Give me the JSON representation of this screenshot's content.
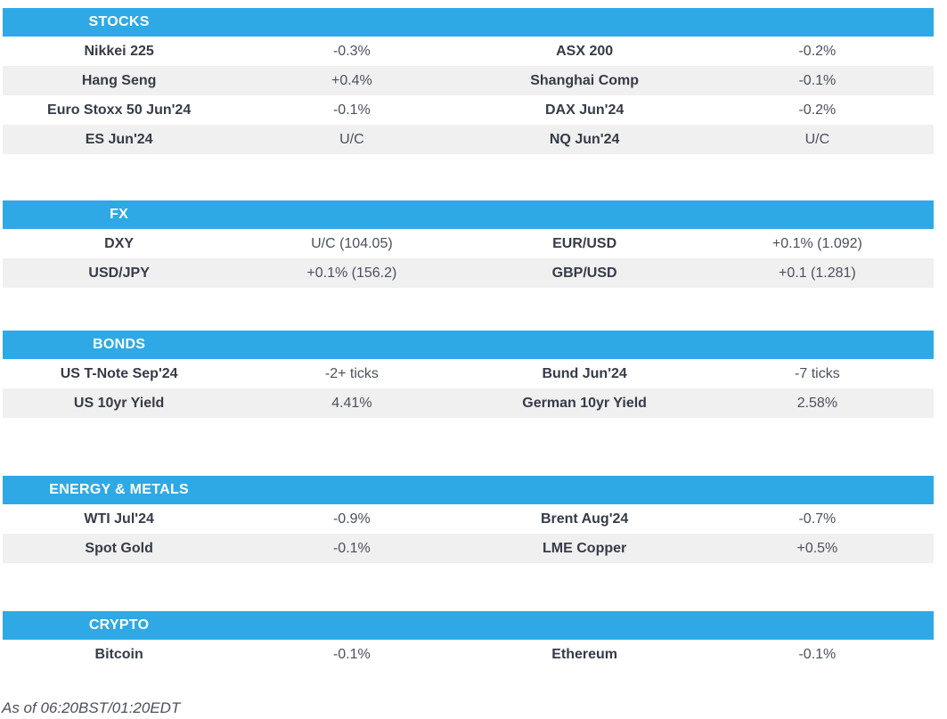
{
  "colors": {
    "accent": "#2EA9E5",
    "row_alt": "#F0F0F1",
    "name_text": "#363B47",
    "value_text": "#4B505C"
  },
  "sections": [
    {
      "id": "stocks",
      "title": "STOCKS",
      "rows": [
        [
          "Nikkei 225",
          "-0.3%",
          "ASX 200",
          "-0.2%"
        ],
        [
          "Hang Seng",
          "+0.4%",
          "Shanghai Comp",
          "-0.1%"
        ],
        [
          "Euro Stoxx 50 Jun'24",
          "-0.1%",
          "DAX Jun'24",
          "-0.2%"
        ],
        [
          "ES Jun'24",
          "U/C",
          "NQ Jun'24",
          "U/C"
        ]
      ]
    },
    {
      "id": "fx",
      "title": "FX",
      "rows": [
        [
          "DXY",
          "U/C (104.05)",
          "EUR/USD",
          "+0.1% (1.092)"
        ],
        [
          "USD/JPY",
          "+0.1% (156.2)",
          "GBP/USD",
          "+0.1 (1.281)"
        ]
      ]
    },
    {
      "id": "bonds",
      "title": "BONDS",
      "rows": [
        [
          "US T-Note Sep'24",
          "-2+ ticks",
          "Bund Jun'24",
          "-7 ticks"
        ],
        [
          "US 10yr Yield",
          "4.41%",
          "German 10yr Yield",
          "2.58%"
        ]
      ]
    },
    {
      "id": "energy-metals",
      "title": "ENERGY & METALS",
      "rows": [
        [
          "WTI Jul'24",
          "-0.9%",
          "Brent Aug'24",
          "-0.7%"
        ],
        [
          "Spot Gold",
          "-0.1%",
          "LME Copper",
          "+0.5%"
        ]
      ]
    },
    {
      "id": "crypto",
      "title": "CRYPTO",
      "rows": [
        [
          "Bitcoin",
          "-0.1%",
          "Ethereum",
          "-0.1%"
        ]
      ]
    }
  ],
  "footer": {
    "as_of": "As of 06:20BST/01:20EDT"
  }
}
